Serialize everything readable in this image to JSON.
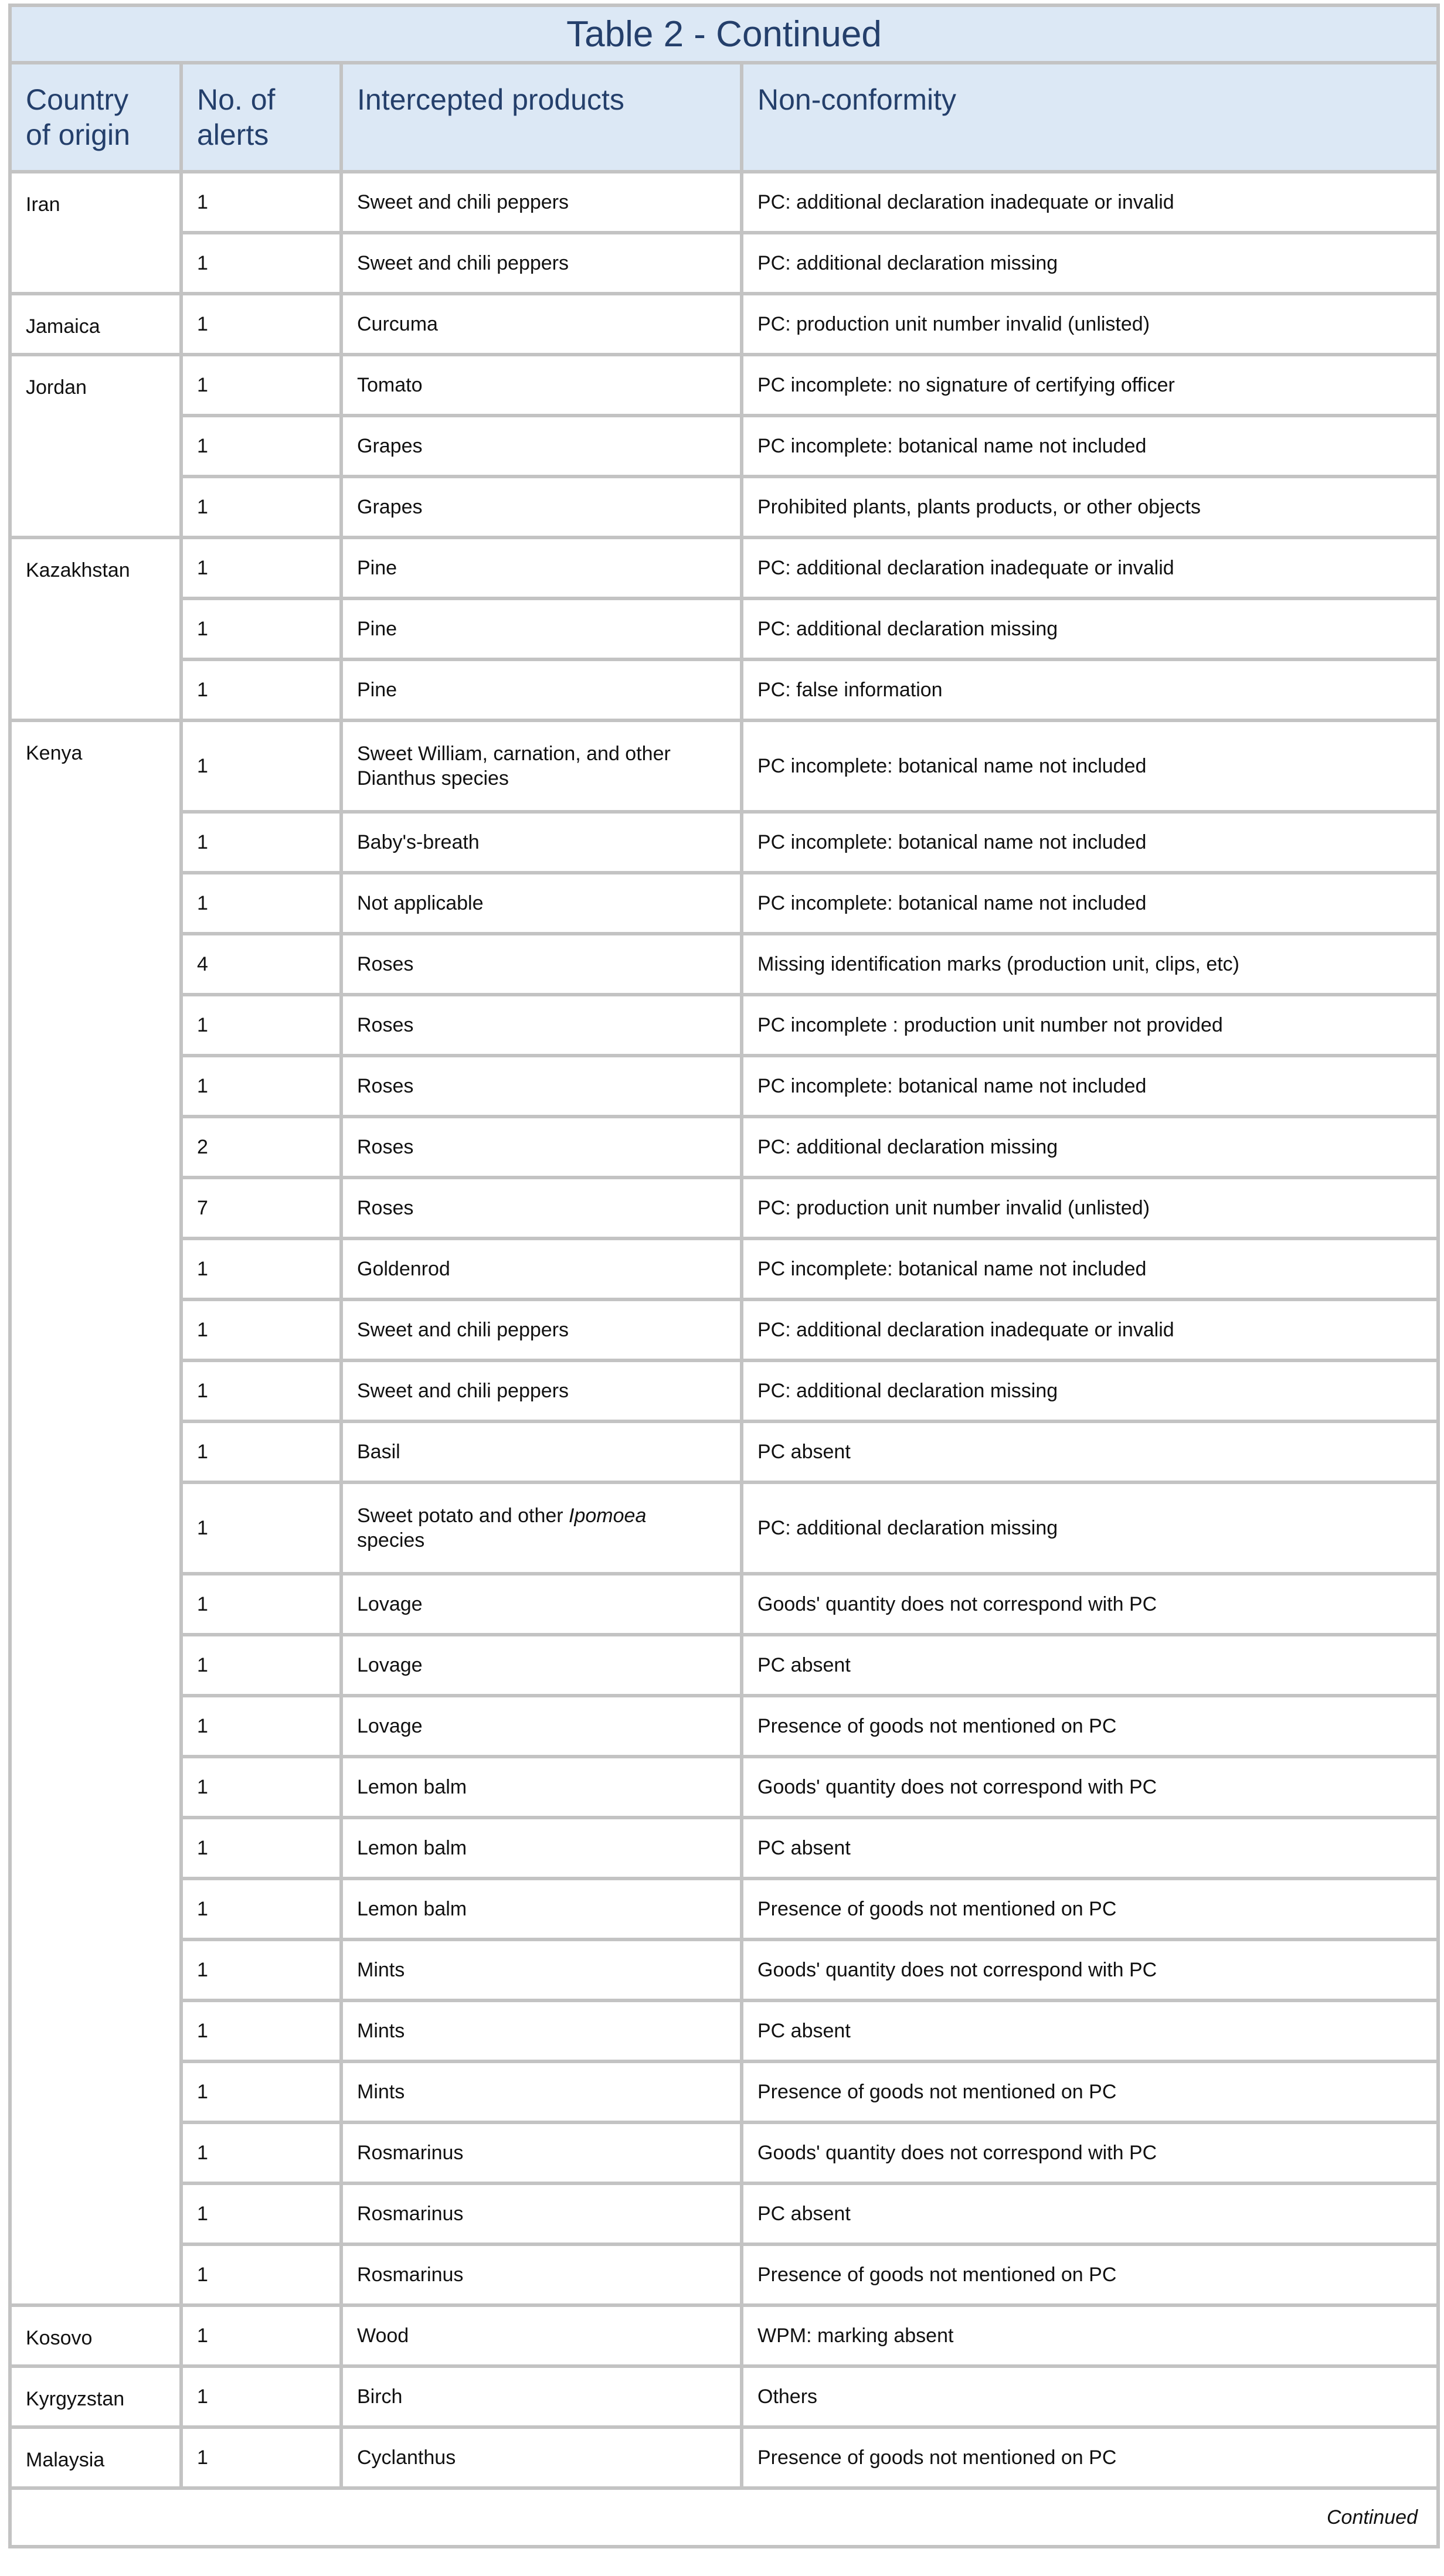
{
  "title": "Table 2 - Continued",
  "columns": [
    "Country of origin",
    "No. of alerts",
    "Intercepted products",
    "Non-conformity"
  ],
  "groups": [
    {
      "country": "Iran",
      "rows": [
        {
          "alerts": "1",
          "product": "Sweet and chili peppers",
          "nonconformity": "PC: additional declaration inadequate or invalid"
        },
        {
          "alerts": "1",
          "product": "Sweet and chili peppers",
          "nonconformity": "PC: additional declaration missing"
        }
      ]
    },
    {
      "country": "Jamaica",
      "rows": [
        {
          "alerts": "1",
          "product": "Curcuma",
          "nonconformity": "PC: production unit number invalid (unlisted)"
        }
      ]
    },
    {
      "country": "Jordan",
      "rows": [
        {
          "alerts": "1",
          "product": "Tomato",
          "nonconformity": "PC incomplete: no signature of certifying officer"
        },
        {
          "alerts": "1",
          "product": "Grapes",
          "nonconformity": "PC incomplete: botanical name not included"
        },
        {
          "alerts": "1",
          "product": "Grapes",
          "nonconformity": "Prohibited plants, plants products, or other objects"
        }
      ]
    },
    {
      "country": "Kazakhstan",
      "rows": [
        {
          "alerts": "1",
          "product": "Pine",
          "nonconformity": "PC: additional declaration inadequate or invalid"
        },
        {
          "alerts": "1",
          "product": "Pine",
          "nonconformity": "PC: additional declaration missing"
        },
        {
          "alerts": "1",
          "product": "Pine",
          "nonconformity": "PC: false information"
        }
      ]
    },
    {
      "country": "Kenya",
      "rows": [
        {
          "alerts": "1",
          "product": "Sweet William, carnation, and other Dianthus species",
          "nonconformity": "PC incomplete: botanical name not included",
          "tall": true
        },
        {
          "alerts": "1",
          "product": "Baby's-breath",
          "nonconformity": "PC incomplete: botanical name not included"
        },
        {
          "alerts": "1",
          "product": "Not applicable",
          "nonconformity": "PC incomplete: botanical name not included"
        },
        {
          "alerts": "4",
          "product": "Roses",
          "nonconformity": "Missing identification marks (production unit, clips, etc)"
        },
        {
          "alerts": "1",
          "product": "Roses",
          "nonconformity": "PC incomplete : production unit number not provided"
        },
        {
          "alerts": "1",
          "product": "Roses",
          "nonconformity": "PC incomplete: botanical name not included"
        },
        {
          "alerts": "2",
          "product": "Roses",
          "nonconformity": "PC: additional declaration missing"
        },
        {
          "alerts": "7",
          "product": "Roses",
          "nonconformity": "PC: production unit number invalid (unlisted)"
        },
        {
          "alerts": "1",
          "product": "Goldenrod",
          "nonconformity": "PC incomplete: botanical name not included"
        },
        {
          "alerts": "1",
          "product": "Sweet and chili peppers",
          "nonconformity": "PC: additional declaration inadequate or invalid"
        },
        {
          "alerts": "1",
          "product": "Sweet and chili peppers",
          "nonconformity": "PC: additional declaration missing"
        },
        {
          "alerts": "1",
          "product": "Basil",
          "nonconformity": "PC absent"
        },
        {
          "alerts": "1",
          "product_parts": [
            "Sweet potato and other ",
            "Ipomoea",
            " species"
          ],
          "nonconformity": "PC: additional declaration missing",
          "tall": true
        },
        {
          "alerts": "1",
          "product": "Lovage",
          "nonconformity": "Goods' quantity does not correspond with PC"
        },
        {
          "alerts": "1",
          "product": "Lovage",
          "nonconformity": "PC absent"
        },
        {
          "alerts": "1",
          "product": "Lovage",
          "nonconformity": "Presence of goods not mentioned on PC"
        },
        {
          "alerts": "1",
          "product": "Lemon balm",
          "nonconformity": "Goods' quantity does not correspond with PC"
        },
        {
          "alerts": "1",
          "product": "Lemon balm",
          "nonconformity": "PC absent"
        },
        {
          "alerts": "1",
          "product": "Lemon balm",
          "nonconformity": "Presence of goods not mentioned on PC"
        },
        {
          "alerts": "1",
          "product": "Mints",
          "nonconformity": "Goods' quantity does not correspond with PC"
        },
        {
          "alerts": "1",
          "product": "Mints",
          "nonconformity": "PC absent"
        },
        {
          "alerts": "1",
          "product": "Mints",
          "nonconformity": "Presence of goods not mentioned on PC"
        },
        {
          "alerts": "1",
          "product": "Rosmarinus",
          "nonconformity": "Goods' quantity does not correspond with PC"
        },
        {
          "alerts": "1",
          "product": "Rosmarinus",
          "nonconformity": "PC absent"
        },
        {
          "alerts": "1",
          "product": "Rosmarinus",
          "nonconformity": "Presence of goods not mentioned on PC"
        }
      ]
    },
    {
      "country": "Kosovo",
      "rows": [
        {
          "alerts": "1",
          "product": "Wood",
          "nonconformity": "WPM: marking absent"
        }
      ]
    },
    {
      "country": "Kyrgyzstan",
      "rows": [
        {
          "alerts": "1",
          "product": "Birch",
          "nonconformity": "Others"
        }
      ]
    },
    {
      "country": "Malaysia",
      "rows": [
        {
          "alerts": "1",
          "product": "Cyclanthus",
          "nonconformity": "Presence of goods not mentioned on PC"
        }
      ]
    }
  ],
  "footer": "Continued"
}
